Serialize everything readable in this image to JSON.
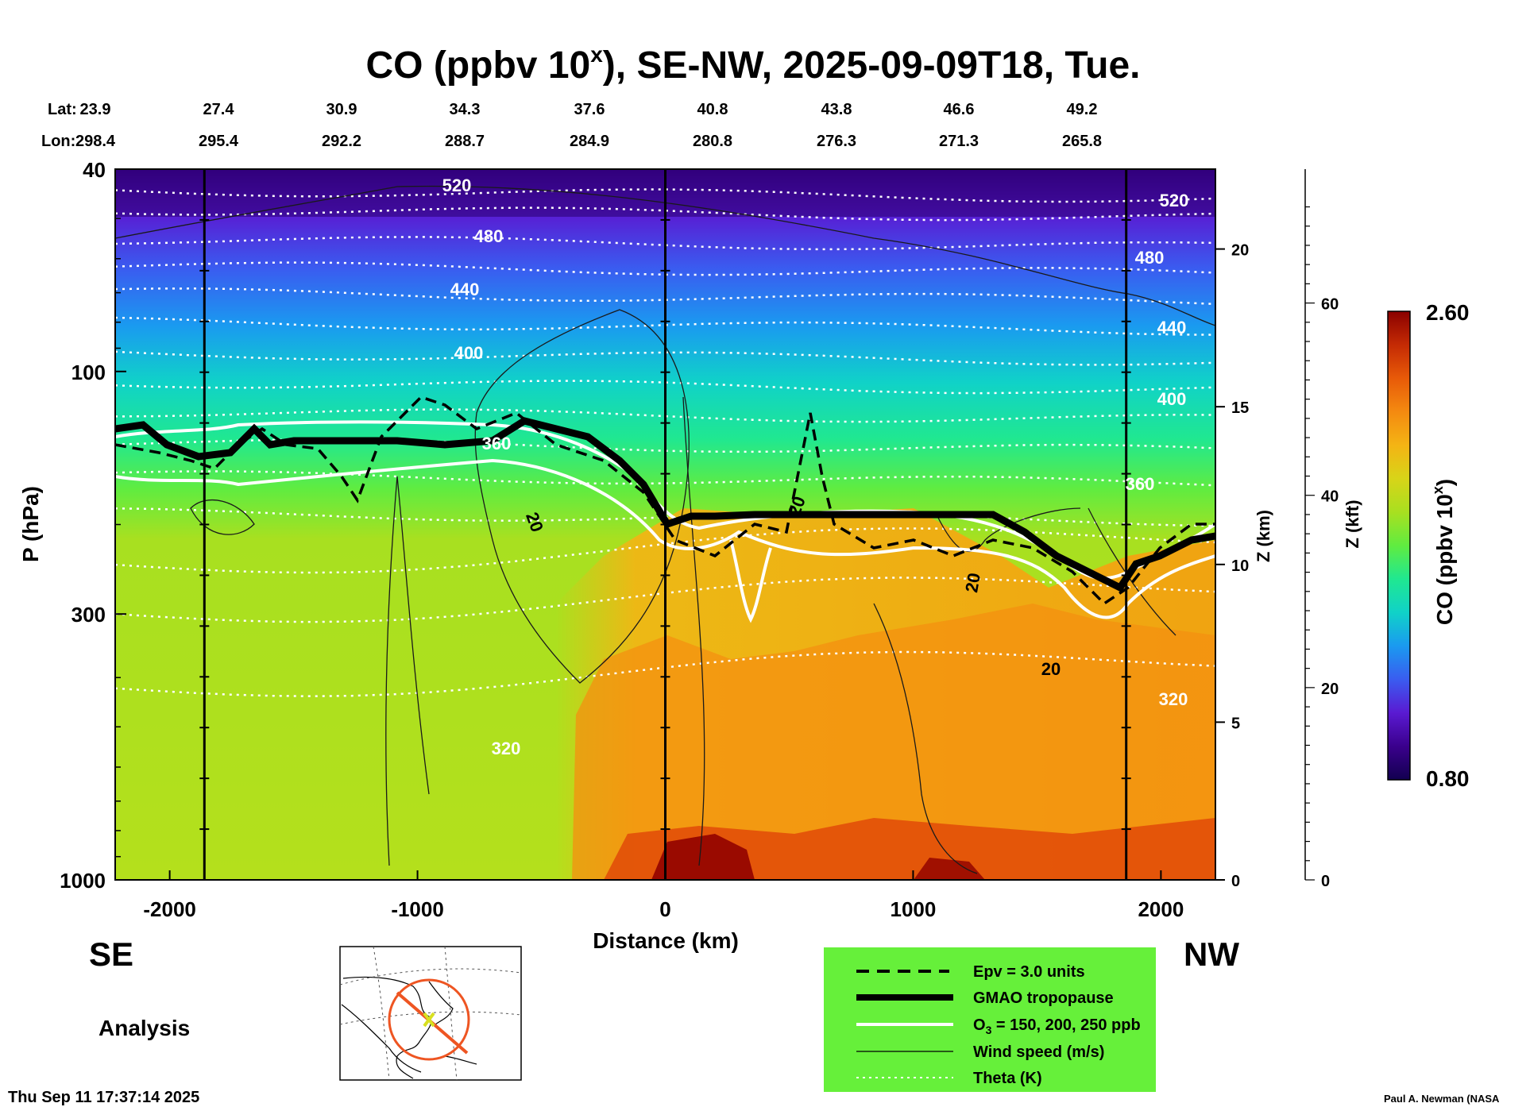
{
  "chart_data": {
    "type": "heatmap",
    "title_main": "CO (ppbv 10",
    "title_sup": "x",
    "title_rest": "), SE-NW, 2025-09-09T18, Tue.",
    "lat_label": "Lat:",
    "lon_label": "Lon:",
    "lat_values": [
      "23.9",
      "27.4",
      "30.9",
      "34.3",
      "37.6",
      "40.8",
      "43.8",
      "46.6",
      "49.2"
    ],
    "lon_values": [
      "298.4",
      "295.4",
      "292.2",
      "288.7",
      "284.9",
      "280.8",
      "276.3",
      "271.3",
      "265.8"
    ],
    "xlabel": "Distance (km)",
    "ylabel": "P (hPa)",
    "x_ticks": [
      -2000,
      -1000,
      0,
      1000,
      2000
    ],
    "xlim": [
      -2220,
      2220
    ],
    "y_ticks": [
      40,
      100,
      300,
      1000
    ],
    "ylim": [
      1000,
      40
    ],
    "y_scale": "log",
    "z_km_label": "Z (km)",
    "z_km_ticks": [
      0,
      5,
      10,
      15,
      20
    ],
    "z_kft_label": "Z (kft)",
    "z_kft_ticks": [
      0,
      20,
      40,
      60
    ],
    "colorbar": {
      "label_main": "CO (ppbv 10",
      "label_sup": "x",
      "label_end": ")",
      "max_label": "2.60",
      "min_label": "0.80",
      "range": [
        0.8,
        2.6
      ],
      "colors": [
        "#120050",
        "#3a008c",
        "#5a1ad2",
        "#3a5cf0",
        "#1a9af0",
        "#10d2c8",
        "#20e890",
        "#60ec40",
        "#a8e020",
        "#d8d418",
        "#f4b414",
        "#f48a10",
        "#e85a08",
        "#c42a04",
        "#8a0000"
      ]
    },
    "theta_labels": [
      "520",
      "480",
      "440",
      "400",
      "360",
      "320",
      "520",
      "480",
      "440",
      "400",
      "360",
      "320"
    ],
    "wind_labels": [
      "20",
      "20",
      "20",
      "20"
    ],
    "left_label": "SE",
    "right_label": "NW",
    "analysis_label": "Analysis",
    "legend": [
      {
        "label": "Epv = 3.0 units",
        "style": "dashed"
      },
      {
        "label": "GMAO tropopause",
        "style": "thick"
      },
      {
        "label": "O",
        "sub": "3",
        "rest": " = 150, 200, 250 ppb",
        "style": "white"
      },
      {
        "label": "Wind speed (m/s)",
        "style": "thin"
      },
      {
        "label": "Theta (K)",
        "style": "dotted"
      }
    ],
    "legend_bg": "#66f03a",
    "timestamp": "Thu Sep 11 17:37:14 2025",
    "credit": "Paul A. Newman (NASA"
  }
}
